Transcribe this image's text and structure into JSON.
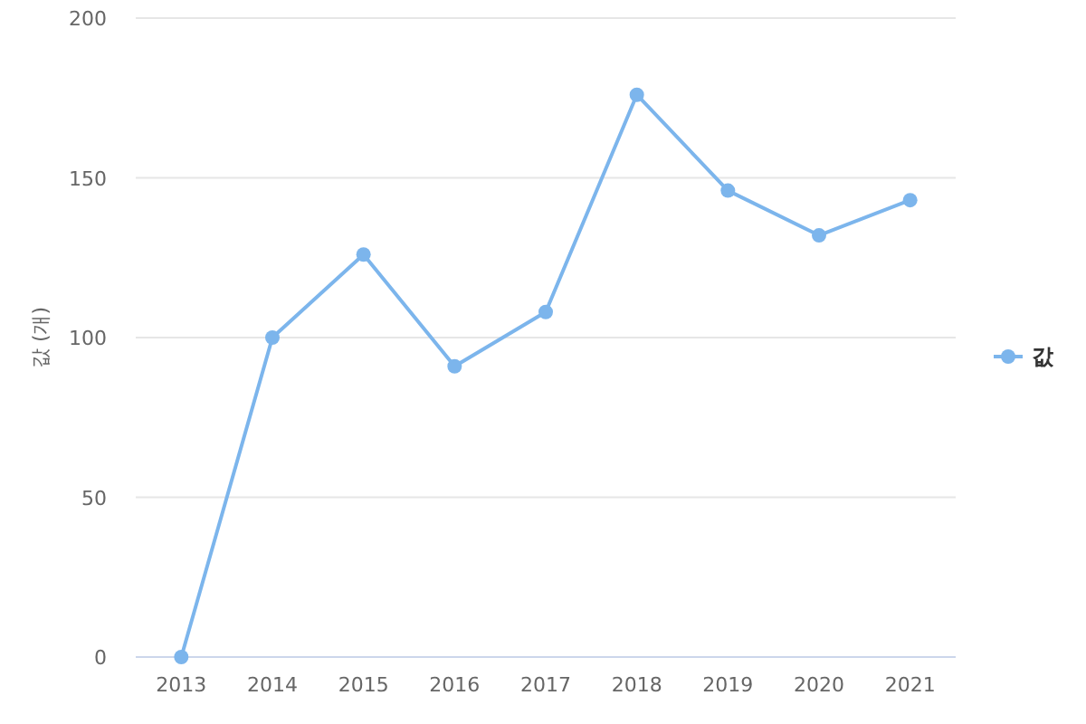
{
  "chart_data": {
    "type": "line",
    "ylabel": "값 (개)",
    "categories": [
      "2013",
      "2014",
      "2015",
      "2016",
      "2017",
      "2018",
      "2019",
      "2020",
      "2021"
    ],
    "series": [
      {
        "name": "값",
        "color": "#7cb5ec",
        "values": [
          0,
          100,
          126,
          91,
          108,
          176,
          146,
          132,
          143
        ]
      }
    ],
    "ylim": [
      0,
      200
    ],
    "yticks": [
      0,
      50,
      100,
      150,
      200
    ],
    "grid": "y",
    "legend": "right",
    "marker": "circle"
  }
}
